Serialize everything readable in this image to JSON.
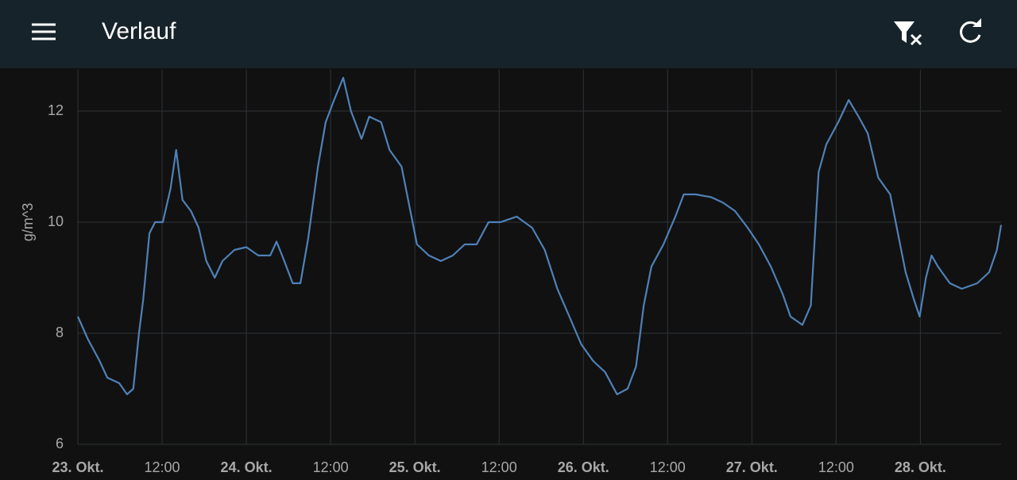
{
  "header": {
    "title": "Verlauf"
  },
  "chart_data": {
    "type": "line",
    "ylabel": "g/m^3",
    "xlim": [
      0,
      131.5
    ],
    "ylim": [
      6,
      12.75
    ],
    "xticks": [
      {
        "value": 0,
        "label": "23. Okt."
      },
      {
        "value": 12,
        "label": "12:00"
      },
      {
        "value": 24,
        "label": "24. Okt."
      },
      {
        "value": 36,
        "label": "12:00"
      },
      {
        "value": 48,
        "label": "25. Okt."
      },
      {
        "value": 60,
        "label": "12:00"
      },
      {
        "value": 72,
        "label": "26. Okt."
      },
      {
        "value": 84,
        "label": "12:00"
      },
      {
        "value": 96,
        "label": "27. Okt."
      },
      {
        "value": 108,
        "label": "12:00"
      },
      {
        "value": 120,
        "label": "28. Okt."
      }
    ],
    "yticks": [
      6,
      8,
      10,
      12
    ],
    "grid": true,
    "series": [
      {
        "color": "#4f81b8",
        "x": [
          0,
          1.4,
          3.1,
          4.2,
          5.9,
          7.0,
          7.9,
          8.7,
          9.3,
          10.2,
          11.0,
          12.1,
          13.2,
          14.0,
          14.9,
          16.1,
          17.2,
          18.3,
          19.5,
          20.6,
          22.3,
          24.0,
          25.7,
          27.4,
          28.3,
          29.4,
          30.6,
          31.7,
          32.8,
          34.2,
          35.3,
          36.5,
          37.8,
          38.9,
          40.4,
          41.5,
          43.2,
          44.4,
          46.1,
          47.2,
          48.3,
          50.0,
          51.7,
          53.4,
          55.1,
          56.8,
          58.5,
          60.2,
          62.5,
          64.7,
          66.5,
          68.3,
          70.0,
          71.7,
          73.4,
          75.1,
          76.8,
          78.3,
          79.5,
          80.6,
          81.7,
          83.4,
          85.1,
          86.3,
          88.0,
          90.2,
          91.9,
          93.6,
          95.4,
          97.0,
          98.7,
          100.4,
          101.5,
          103.2,
          104.4,
          105.5,
          106.6,
          108.3,
          109.8,
          111.2,
          112.5,
          114.0,
          115.7,
          116.8,
          117.9,
          119.1,
          119.9,
          120.8,
          121.6,
          122.5,
          124.2,
          125.9,
          128.1,
          129.8,
          130.9,
          131.5
        ],
        "values": [
          8.3,
          7.9,
          7.5,
          7.2,
          7.1,
          6.9,
          7.0,
          8.0,
          8.6,
          9.8,
          10.0,
          10.0,
          10.6,
          11.3,
          10.4,
          10.2,
          9.9,
          9.3,
          9.0,
          9.3,
          9.5,
          9.55,
          9.4,
          9.4,
          9.65,
          9.3,
          8.9,
          8.9,
          9.7,
          11.0,
          11.8,
          12.2,
          12.6,
          12.0,
          11.5,
          11.9,
          11.8,
          11.3,
          11.0,
          10.3,
          9.6,
          9.4,
          9.3,
          9.4,
          9.6,
          9.6,
          10.0,
          10.0,
          10.1,
          9.9,
          9.5,
          8.8,
          8.3,
          7.8,
          7.5,
          7.3,
          6.9,
          7.0,
          7.4,
          8.5,
          9.2,
          9.6,
          10.1,
          10.5,
          10.5,
          10.45,
          10.35,
          10.2,
          9.9,
          9.6,
          9.2,
          8.7,
          8.3,
          8.15,
          8.5,
          10.9,
          11.4,
          11.8,
          12.2,
          11.9,
          11.6,
          10.8,
          10.5,
          9.8,
          9.1,
          8.6,
          8.3,
          9.0,
          9.4,
          9.2,
          8.9,
          8.8,
          8.9,
          9.1,
          9.5,
          9.95
        ]
      }
    ]
  }
}
